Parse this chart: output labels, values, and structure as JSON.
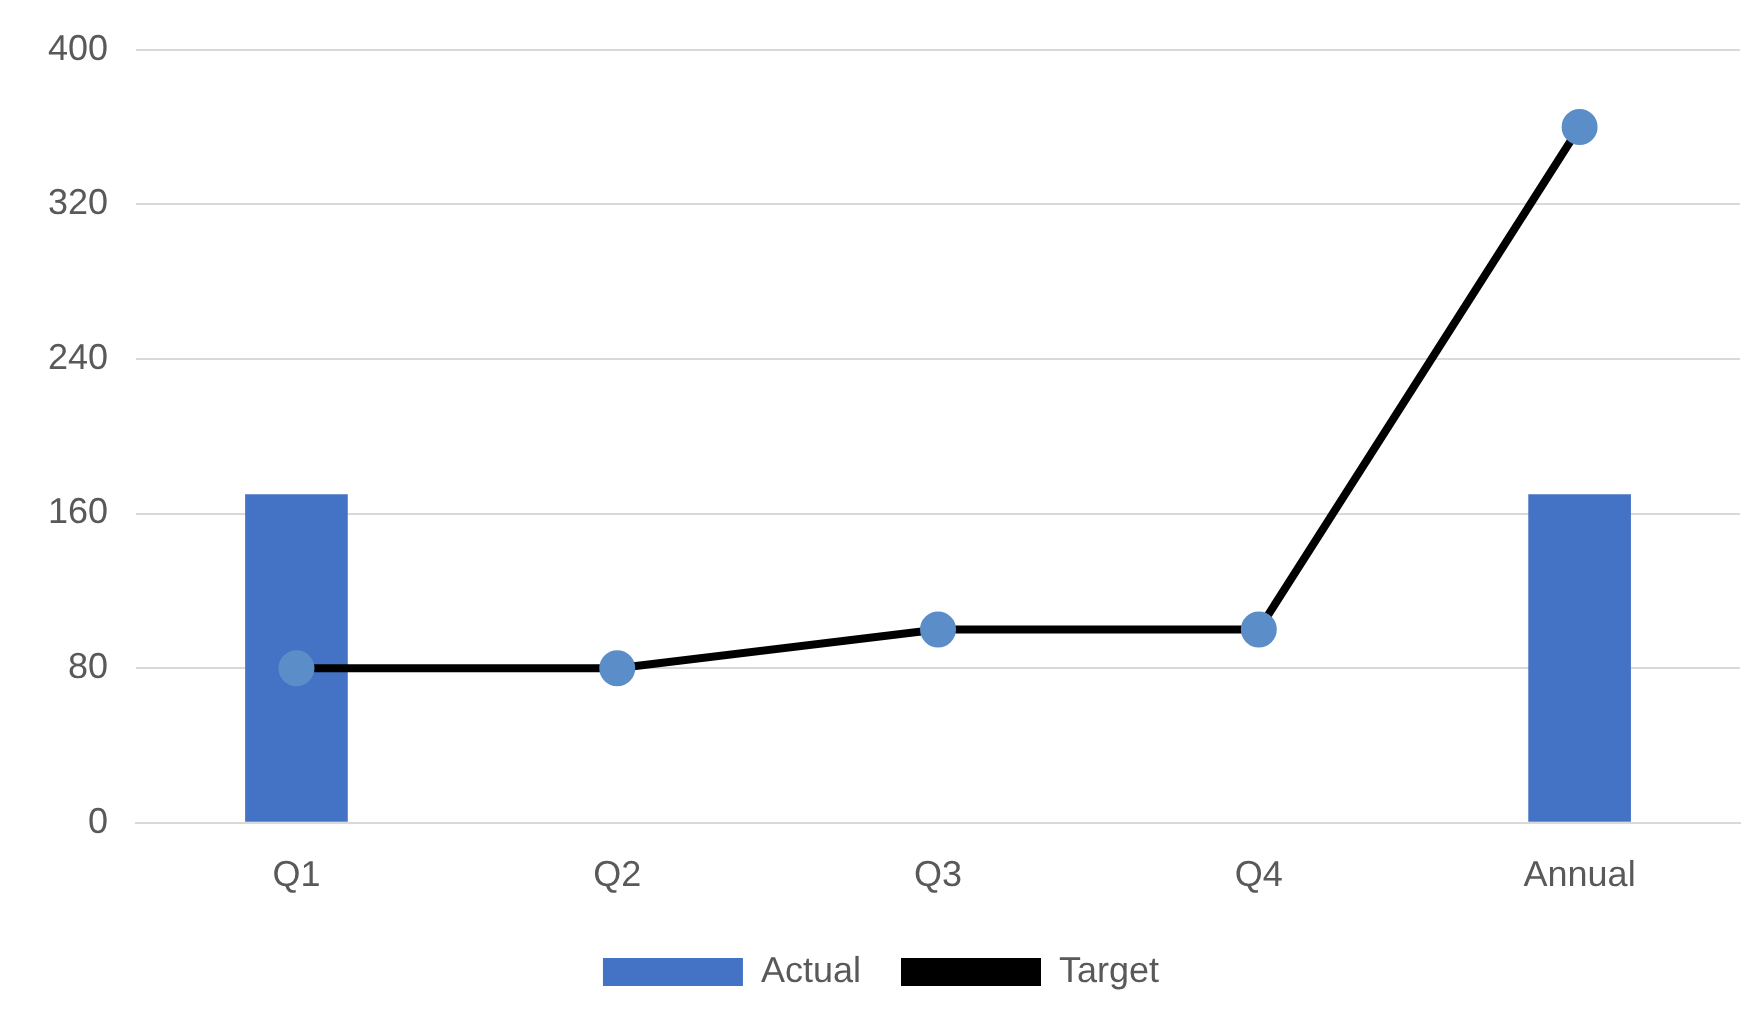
{
  "chart_data": {
    "type": "bar",
    "categories": [
      "Q1",
      "Q2",
      "Q3",
      "Q4",
      "Annual"
    ],
    "series": [
      {
        "name": "Actual",
        "color": "#4472c4",
        "values": [
          170,
          null,
          null,
          null,
          170
        ]
      },
      {
        "name": "Target",
        "type": "line",
        "color": "#000000",
        "values": [
          80,
          80,
          100,
          100,
          360
        ]
      }
    ],
    "ylim": [
      0,
      400
    ],
    "yticks": [
      0,
      80,
      160,
      240,
      320,
      400
    ],
    "grid": "y",
    "legend": "bottom",
    "marker": "circle"
  }
}
